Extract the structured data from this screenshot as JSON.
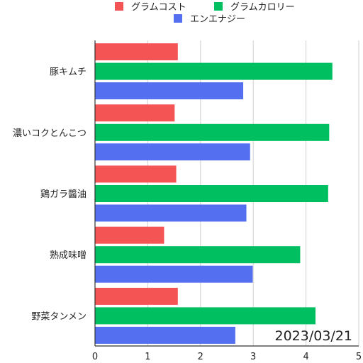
{
  "chart_data": {
    "type": "bar",
    "orientation": "horizontal",
    "categories": [
      "豚キムチ",
      "濃いコクとんこつ",
      "鶏ガラ醬油",
      "熟成味噌",
      "野菜タンメン"
    ],
    "series": [
      {
        "name": "グラムコスト",
        "color": "#f55454",
        "values": [
          1.57,
          1.51,
          1.54,
          1.31,
          1.57
        ]
      },
      {
        "name": "グラムカロリー",
        "color": "#00bf60",
        "values": [
          4.5,
          4.44,
          4.42,
          3.89,
          4.18
        ]
      },
      {
        "name": "エンエナジー",
        "color": "#5470f0",
        "values": [
          2.81,
          2.94,
          2.87,
          2.99,
          2.66
        ]
      }
    ],
    "xlim": [
      0,
      5
    ],
    "xticks": [
      "0",
      "1",
      "2",
      "3",
      "4",
      "5"
    ],
    "grid": true,
    "legend": "top-center",
    "annotation": "2023/03/21"
  }
}
